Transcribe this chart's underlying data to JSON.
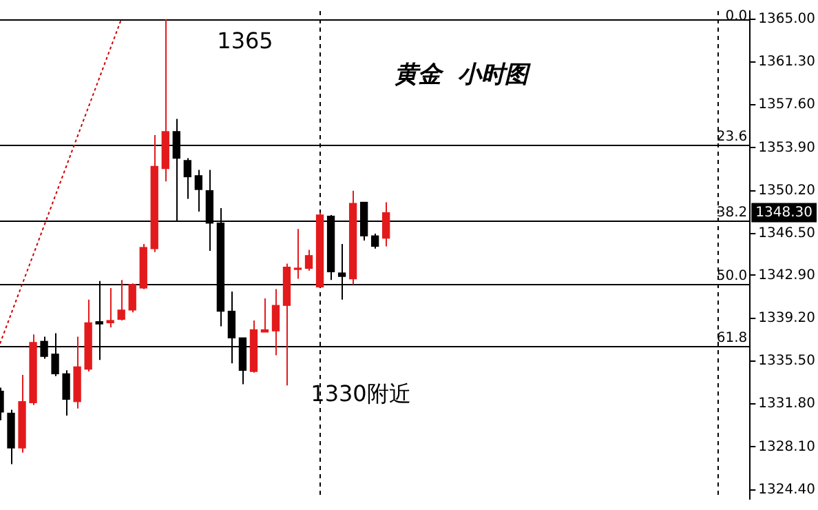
{
  "chart_data": {
    "type": "candlestick",
    "title": "黄金  小时图",
    "categories": [
      null,
      null,
      null,
      null,
      null,
      null,
      null,
      null,
      null,
      null,
      null,
      null,
      null,
      null,
      null,
      null,
      null,
      null,
      null,
      null,
      null,
      null,
      null,
      null,
      null,
      null,
      null,
      null,
      null,
      null,
      null,
      null,
      null,
      null,
      null,
      null,
      null,
      null,
      null,
      null,
      null,
      null,
      null,
      null,
      null,
      null,
      null,
      null,
      null,
      null,
      null,
      null,
      null,
      null,
      null,
      null,
      null,
      null,
      null,
      null,
      null,
      null,
      null,
      null,
      null,
      null,
      null,
      null,
      null
    ],
    "ohlc": [
      [
        1332.9,
        1333.2,
        1330.4,
        1331.1
      ],
      [
        1331.0,
        1331.3,
        1326.6,
        1328.0
      ],
      [
        1328.0,
        1334.3,
        1327.6,
        1332.0
      ],
      [
        1331.9,
        1337.8,
        1331.7,
        1337.1
      ],
      [
        1337.2,
        1337.6,
        1335.7,
        1335.9
      ],
      [
        1336.1,
        1337.9,
        1334.2,
        1334.4
      ],
      [
        1334.4,
        1334.7,
        1330.8,
        1332.2
      ],
      [
        1332.0,
        1337.6,
        1331.4,
        1335.0
      ],
      [
        1334.8,
        1340.8,
        1334.6,
        1338.8
      ],
      [
        1338.9,
        1342.4,
        1335.6,
        1338.7
      ],
      [
        1338.8,
        1341.8,
        1338.4,
        1339.0
      ],
      [
        1339.1,
        1342.5,
        1339.0,
        1339.9
      ],
      [
        1339.9,
        1342.2,
        1339.7,
        1342.1
      ],
      [
        1341.8,
        1345.6,
        1341.7,
        1345.3
      ],
      [
        1345.2,
        1355.0,
        1344.9,
        1352.3
      ],
      [
        1352.1,
        1365.0,
        1351.0,
        1355.3
      ],
      [
        1355.3,
        1356.4,
        1347.5,
        1353.0
      ],
      [
        1352.8,
        1353.0,
        1349.5,
        1351.4
      ],
      [
        1351.5,
        1352.0,
        1348.4,
        1350.3
      ],
      [
        1350.2,
        1352.0,
        1345.0,
        1347.4
      ],
      [
        1347.4,
        1348.7,
        1338.5,
        1339.8
      ],
      [
        1339.8,
        1341.5,
        1335.3,
        1337.5
      ],
      [
        1337.5,
        1337.5,
        1333.5,
        1334.7
      ],
      [
        1334.6,
        1339.0,
        1334.5,
        1338.2
      ],
      [
        1338.0,
        1340.9,
        1338.0,
        1338.2
      ],
      [
        1338.1,
        1341.7,
        1336.0,
        1340.3
      ],
      [
        1340.3,
        1343.9,
        1333.4,
        1343.6
      ],
      [
        1343.4,
        1346.9,
        1342.6,
        1343.5
      ],
      [
        1343.5,
        1345.1,
        1343.3,
        1344.6
      ],
      [
        1341.9,
        1348.3,
        1341.9,
        1348.1
      ],
      [
        1348.0,
        1348.1,
        1342.5,
        1343.2
      ],
      [
        1343.1,
        1345.6,
        1340.8,
        1342.8
      ],
      [
        1342.6,
        1350.2,
        1342.1,
        1349.1
      ],
      [
        1349.2,
        1349.2,
        1345.9,
        1346.3
      ],
      [
        1346.3,
        1346.5,
        1345.2,
        1345.4
      ],
      [
        1346.1,
        1349.2,
        1345.4,
        1348.3
      ],
      null,
      null,
      null,
      null,
      null,
      null,
      null,
      null,
      null,
      null,
      null,
      null,
      null,
      null,
      null,
      null,
      null,
      null,
      null,
      null,
      null,
      null,
      null,
      null,
      null,
      null,
      null,
      null,
      null,
      null,
      null,
      null,
      null
    ],
    "colors": [
      "#000000",
      "#000000",
      "#e31a1c",
      "#e31a1c",
      "#000000",
      "#000000",
      "#000000",
      "#e31a1c",
      "#e31a1c",
      "#000000",
      "#e31a1c",
      "#e31a1c",
      "#e31a1c",
      "#e31a1c",
      "#e31a1c",
      "#e31a1c",
      "#000000",
      "#000000",
      "#000000",
      "#000000",
      "#000000",
      "#000000",
      "#000000",
      "#e31a1c",
      "#e31a1c",
      "#e31a1c",
      "#e31a1c",
      "#e31a1c",
      "#e31a1c",
      "#e31a1c",
      "#000000",
      "#000000",
      "#e31a1c",
      "#000000",
      "#000000",
      "#e31a1c",
      null,
      null,
      null,
      null,
      null,
      null,
      null,
      null,
      null,
      null,
      null,
      null,
      null,
      null,
      null,
      null,
      null,
      null,
      null,
      null,
      null,
      null,
      null,
      null,
      null,
      null,
      null,
      null,
      null,
      null,
      null,
      null,
      null
    ],
    "series": [
      {
        "type": "line",
        "color": "#cc0000",
        "line_style": "dotted",
        "marker": "none",
        "values": [
          1337.0,
          null,
          null,
          null,
          null,
          null,
          null,
          null,
          null,
          null,
          null,
          1365.0,
          null,
          null,
          null,
          null,
          null,
          null,
          null,
          null,
          null,
          null,
          null,
          null,
          null,
          null,
          null,
          null,
          null,
          null,
          null,
          null,
          null,
          null,
          null,
          null,
          null,
          null,
          null,
          null,
          null,
          null,
          null,
          null,
          null,
          null,
          null,
          null,
          null,
          null,
          null,
          null,
          null,
          null,
          null,
          null,
          null,
          null,
          null,
          null,
          null,
          null,
          null,
          null,
          null,
          null,
          null,
          null,
          null
        ]
      }
    ],
    "ref_lines": [
      {
        "axis": "y",
        "value": 1365.0
      },
      {
        "axis": "y",
        "value": 1354.2
      },
      {
        "axis": "y",
        "value": 1347.6
      },
      {
        "axis": "y",
        "value": 1342.1
      },
      {
        "axis": "y",
        "value": 1336.8
      }
    ],
    "annotations": [
      {
        "text": "1365",
        "y": 1365.0
      },
      "1330附近",
      "1348.30",
      {
        "text": "0.0",
        "y": 1365.0
      },
      {
        "text": "23.6",
        "y": 1354.2
      },
      {
        "text": "38.2",
        "y": 1347.6
      },
      {
        "text": "50.0",
        "y": 1342.1
      },
      {
        "text": "61.8",
        "y": 1336.8
      }
    ],
    "ylim": [
      1323.6,
      1365.7
    ],
    "yticks": [
      {
        "value": 1365.0,
        "label": "1365.00"
      },
      {
        "value": 1361.3,
        "label": "1361.30"
      },
      {
        "value": 1357.6,
        "label": "1357.60"
      },
      {
        "value": 1353.9,
        "label": "1353.90"
      },
      {
        "value": 1350.2,
        "label": "1350.20"
      },
      {
        "value": 1346.5,
        "label": "1346.50"
      },
      {
        "value": 1342.9,
        "label": "1342.90"
      },
      {
        "value": 1339.2,
        "label": "1339.20"
      },
      {
        "value": 1335.5,
        "label": "1335.50"
      },
      {
        "value": 1331.8,
        "label": "1331.80"
      },
      {
        "value": 1328.1,
        "label": "1328.10"
      },
      {
        "value": 1324.4,
        "label": "1324.40"
      }
    ],
    "tick_labels": "y",
    "grid": false,
    "legend": false
  }
}
